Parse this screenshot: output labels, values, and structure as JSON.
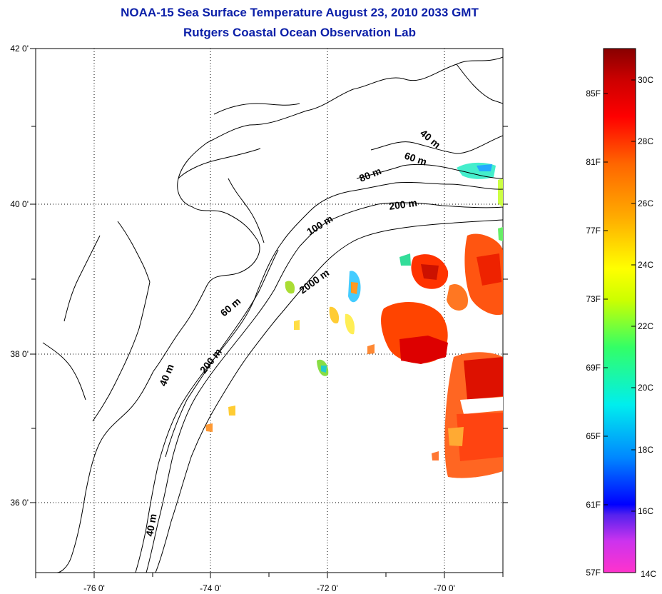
{
  "title": {
    "line1": "NOAA-15 Sea Surface Temperature August 23, 2010 2033 GMT",
    "line2": "Rutgers Coastal Ocean Observation Lab"
  },
  "axes": {
    "lon_labels": [
      "-76 0'",
      "-74 0'",
      "-72 0'",
      "-70 0'"
    ],
    "lat_labels": [
      "42 0'",
      "40 0'",
      "38 0'",
      "36 0'"
    ],
    "lon_range": [
      -77,
      -69
    ],
    "lat_range": [
      35,
      42
    ],
    "grid": "dotted"
  },
  "contour_labels": [
    "40 m",
    "60 m",
    "80 m",
    "200 m",
    "100 m",
    "2000 m",
    "60 m",
    "200 m",
    "40 m",
    "40 m"
  ],
  "colorbar": {
    "f_labels": [
      "85F",
      "81F",
      "77F",
      "73F",
      "69F",
      "65F",
      "61F",
      "57F"
    ],
    "c_labels": [
      "30C",
      "28C",
      "26C",
      "24C",
      "22C",
      "20C",
      "18C",
      "16C",
      "14C"
    ],
    "range_c": [
      14,
      31
    ],
    "colors": [
      "#ff33cc",
      "#8a2be2",
      "#0000ff",
      "#0099ff",
      "#00eeee",
      "#33ff66",
      "#ccff00",
      "#ffff00",
      "#ffaa00",
      "#ff6600",
      "#ff0000",
      "#cc0000",
      "#880000"
    ]
  }
}
